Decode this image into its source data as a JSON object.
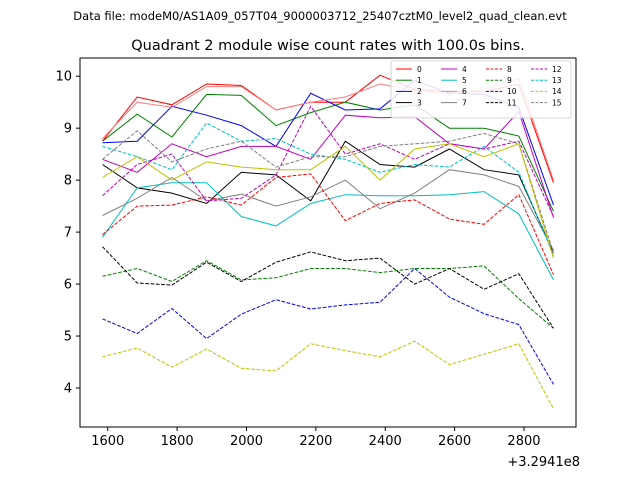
{
  "chart_data": {
    "type": "line",
    "suptitle": "Data file: modeM0/AS1A09_057T04_9000003712_25407cztM0_level2_quad_clean.evt",
    "title": "Quadrant 2 module wise count rates with 100.0s bins.",
    "xlabel": "",
    "ylabel": "",
    "x_offset_label": "+3.2941e8",
    "x": [
      1585,
      1685,
      1785,
      1885,
      1985,
      2085,
      2185,
      2285,
      2385,
      2485,
      2585,
      2685,
      2785,
      2885
    ],
    "xlim": [
      1520,
      2950
    ],
    "ylim": [
      3.25,
      10.35
    ],
    "xticks": [
      1600,
      1800,
      2000,
      2200,
      2400,
      2600,
      2800
    ],
    "yticks": [
      4,
      5,
      6,
      7,
      8,
      9,
      10
    ],
    "grid": false,
    "legend_position": "top-right",
    "series": [
      {
        "name": "0",
        "color": "#ff0000",
        "dash": "solid",
        "values": [
          8.75,
          9.6,
          9.45,
          9.85,
          9.82,
          9.35,
          9.5,
          9.5,
          10.02,
          9.75,
          9.7,
          9.7,
          9.85,
          7.95
        ]
      },
      {
        "name": "1",
        "color": "#008000",
        "dash": "solid",
        "values": [
          8.75,
          9.27,
          8.83,
          9.65,
          9.63,
          9.05,
          9.3,
          9.5,
          9.35,
          9.45,
          9.0,
          9.0,
          8.85,
          7.4
        ]
      },
      {
        "name": "2",
        "color": "#0000ff",
        "dash": "solid",
        "values": [
          8.72,
          8.75,
          9.42,
          9.25,
          9.05,
          8.65,
          9.67,
          9.35,
          9.37,
          9.92,
          9.67,
          9.65,
          9.4,
          7.52
        ]
      },
      {
        "name": "3",
        "color": "#000000",
        "dash": "solid",
        "values": [
          8.3,
          7.85,
          7.75,
          7.55,
          8.15,
          8.1,
          7.6,
          8.75,
          8.3,
          8.25,
          8.6,
          8.2,
          8.1,
          6.6
        ]
      },
      {
        "name": "4",
        "color": "#c000c0",
        "dash": "solid",
        "values": [
          8.4,
          8.15,
          8.7,
          8.45,
          8.65,
          8.65,
          8.4,
          9.25,
          9.2,
          9.22,
          8.7,
          8.6,
          9.32,
          7.28
        ]
      },
      {
        "name": "5",
        "color": "#00c0c0",
        "dash": "solid",
        "values": [
          6.9,
          7.85,
          7.95,
          7.95,
          7.3,
          7.12,
          7.55,
          7.72,
          7.7,
          7.7,
          7.72,
          7.78,
          7.35,
          6.08
        ]
      },
      {
        "name": "6",
        "color": "#ff8080",
        "dash": "solid",
        "values": [
          8.8,
          9.5,
          9.4,
          9.8,
          9.8,
          9.35,
          9.5,
          9.6,
          9.85,
          9.72,
          9.65,
          9.75,
          9.95,
          8.0
        ]
      },
      {
        "name": "7",
        "color": "#808080",
        "dash": "solid",
        "values": [
          7.32,
          7.65,
          8.05,
          7.6,
          7.73,
          7.5,
          7.68,
          8.0,
          7.45,
          7.75,
          8.2,
          8.1,
          7.88,
          6.65
        ]
      },
      {
        "name": "8",
        "color": "#ff0000",
        "dash": "dashed",
        "values": [
          6.95,
          7.5,
          7.52,
          7.68,
          7.52,
          8.05,
          8.12,
          7.22,
          7.55,
          7.62,
          7.25,
          7.15,
          7.72,
          6.18
        ]
      },
      {
        "name": "9",
        "color": "#008000",
        "dash": "dashed",
        "values": [
          6.15,
          6.3,
          6.05,
          6.45,
          6.08,
          6.12,
          6.3,
          6.3,
          6.22,
          6.3,
          6.3,
          6.35,
          5.72,
          5.15
        ]
      },
      {
        "name": "10",
        "color": "#0000ff",
        "dash": "dashed",
        "values": [
          5.33,
          5.05,
          5.53,
          4.95,
          5.42,
          5.7,
          5.52,
          5.6,
          5.65,
          6.3,
          5.75,
          5.43,
          5.22,
          4.07
        ]
      },
      {
        "name": "11",
        "color": "#000000",
        "dash": "dashed",
        "values": [
          6.72,
          6.02,
          5.98,
          6.42,
          6.05,
          6.42,
          6.62,
          6.45,
          6.5,
          6.0,
          6.3,
          5.9,
          6.2,
          5.15
        ]
      },
      {
        "name": "12",
        "color": "#c000c0",
        "dash": "dashed",
        "values": [
          7.7,
          8.3,
          8.5,
          7.6,
          7.65,
          8.1,
          9.42,
          8.5,
          8.7,
          8.4,
          8.7,
          8.6,
          8.75,
          7.3
        ]
      },
      {
        "name": "13",
        "color": "#00c0c0",
        "dash": "dashed",
        "values": [
          8.65,
          8.45,
          8.2,
          9.1,
          8.75,
          8.8,
          8.5,
          8.4,
          8.15,
          8.3,
          8.25,
          8.65,
          8.15,
          6.55
        ]
      },
      {
        "name": "14",
        "color": "#c0c000",
        "dash": "dashed",
        "values": [
          4.6,
          4.77,
          4.4,
          4.75,
          4.38,
          4.33,
          4.85,
          4.72,
          4.6,
          4.9,
          4.45,
          4.65,
          4.85,
          3.6
        ]
      },
      {
        "name": "15",
        "color": "#808080",
        "dash": "dashed",
        "values": [
          8.4,
          8.95,
          8.35,
          8.6,
          8.75,
          8.25,
          8.45,
          8.45,
          8.65,
          8.7,
          8.75,
          8.9,
          8.7,
          6.6
        ]
      },
      {
        "name": "",
        "color": "#c0c000",
        "dash": "solid",
        "values": [
          8.05,
          8.45,
          8.0,
          8.35,
          8.25,
          8.2,
          8.2,
          8.65,
          8.0,
          8.6,
          8.7,
          8.45,
          8.7,
          6.5
        ]
      }
    ]
  }
}
